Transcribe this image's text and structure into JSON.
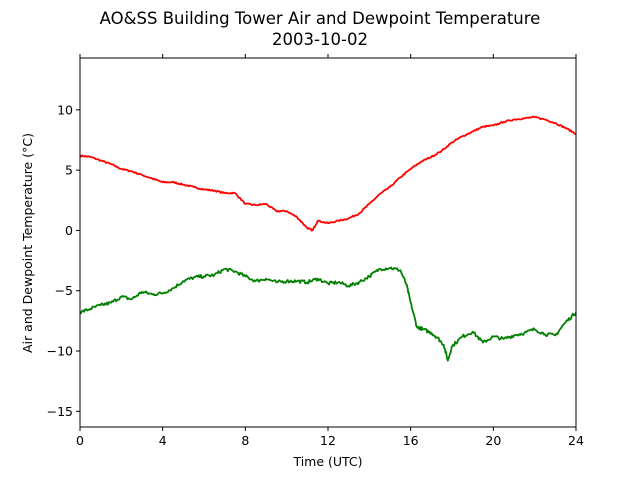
{
  "chart_data": {
    "type": "line",
    "title": "AO&SS Building Tower Air and Dewpoint Temperature",
    "subtitle": "2003-10-02",
    "xlabel": "Time (UTC)",
    "ylabel": "Air and Dewpoint Temperature (°C)",
    "xlim": [
      0,
      24
    ],
    "ylim": [
      -16.3,
      14.3
    ],
    "xticks": [
      0,
      4,
      8,
      12,
      16,
      20,
      24
    ],
    "xtick_labels": [
      "0",
      "4",
      "8",
      "12",
      "16",
      "20",
      "24"
    ],
    "yticks": [
      -15,
      -10,
      -5,
      0,
      5,
      10
    ],
    "ytick_labels": [
      "−15",
      "−10",
      "−5",
      "0",
      "5",
      "10"
    ],
    "grid": false,
    "legend": "none",
    "series": [
      {
        "color": "#ff0000",
        "x": [
          0,
          0.5,
          1,
          1.5,
          2,
          2.5,
          3,
          3.5,
          4,
          4.5,
          5,
          5.5,
          6,
          6.5,
          7,
          7.5,
          8,
          8.5,
          9,
          9.5,
          10,
          10.5,
          11,
          11.25,
          11.5,
          12,
          12.5,
          13,
          13.5,
          14,
          14.5,
          15,
          15.5,
          16,
          16.5,
          17,
          17.5,
          18,
          18.5,
          19,
          19.5,
          20,
          20.5,
          21,
          21.5,
          22,
          22.5,
          23,
          23.5,
          24
        ],
        "y": [
          6.2,
          6.1,
          5.8,
          5.5,
          5.1,
          4.9,
          4.6,
          4.3,
          4.0,
          4.0,
          3.8,
          3.6,
          3.4,
          3.3,
          3.1,
          3.1,
          2.2,
          2.1,
          2.2,
          1.6,
          1.6,
          1.1,
          0.2,
          0.0,
          0.8,
          0.6,
          0.8,
          1.0,
          1.4,
          2.2,
          3.0,
          3.6,
          4.4,
          5.1,
          5.7,
          6.1,
          6.6,
          7.3,
          7.8,
          8.2,
          8.6,
          8.7,
          9.0,
          9.2,
          9.3,
          9.4,
          9.2,
          8.9,
          8.5,
          8.0
        ]
      },
      {
        "color": "#008000",
        "x": [
          0,
          0.5,
          1,
          1.5,
          2,
          2.5,
          3,
          3.5,
          4,
          4.5,
          5,
          5.5,
          6,
          6.5,
          7,
          7.5,
          8,
          8.5,
          9,
          9.5,
          10,
          10.5,
          11,
          11.5,
          12,
          12.5,
          13,
          13.5,
          14,
          14.5,
          15,
          15.5,
          15.8,
          16,
          16.3,
          16.6,
          17,
          17.3,
          17.6,
          17.8,
          18,
          18.5,
          19,
          19.5,
          20,
          20.5,
          21,
          21.5,
          22,
          22.5,
          23,
          23.5,
          24
        ],
        "y": [
          -6.8,
          -6.5,
          -6.2,
          -6.0,
          -5.5,
          -5.7,
          -5.1,
          -5.3,
          -5.2,
          -4.8,
          -4.2,
          -3.9,
          -3.8,
          -3.7,
          -3.2,
          -3.4,
          -3.8,
          -4.2,
          -4.0,
          -4.3,
          -4.2,
          -4.2,
          -4.3,
          -4.0,
          -4.4,
          -4.3,
          -4.6,
          -4.3,
          -3.8,
          -3.2,
          -3.1,
          -3.3,
          -4.5,
          -6.0,
          -8.0,
          -8.2,
          -8.5,
          -8.9,
          -9.5,
          -10.8,
          -9.6,
          -8.8,
          -8.4,
          -9.3,
          -8.8,
          -9.0,
          -8.7,
          -8.5,
          -8.2,
          -8.6,
          -8.7,
          -7.6,
          -6.8
        ]
      }
    ]
  }
}
